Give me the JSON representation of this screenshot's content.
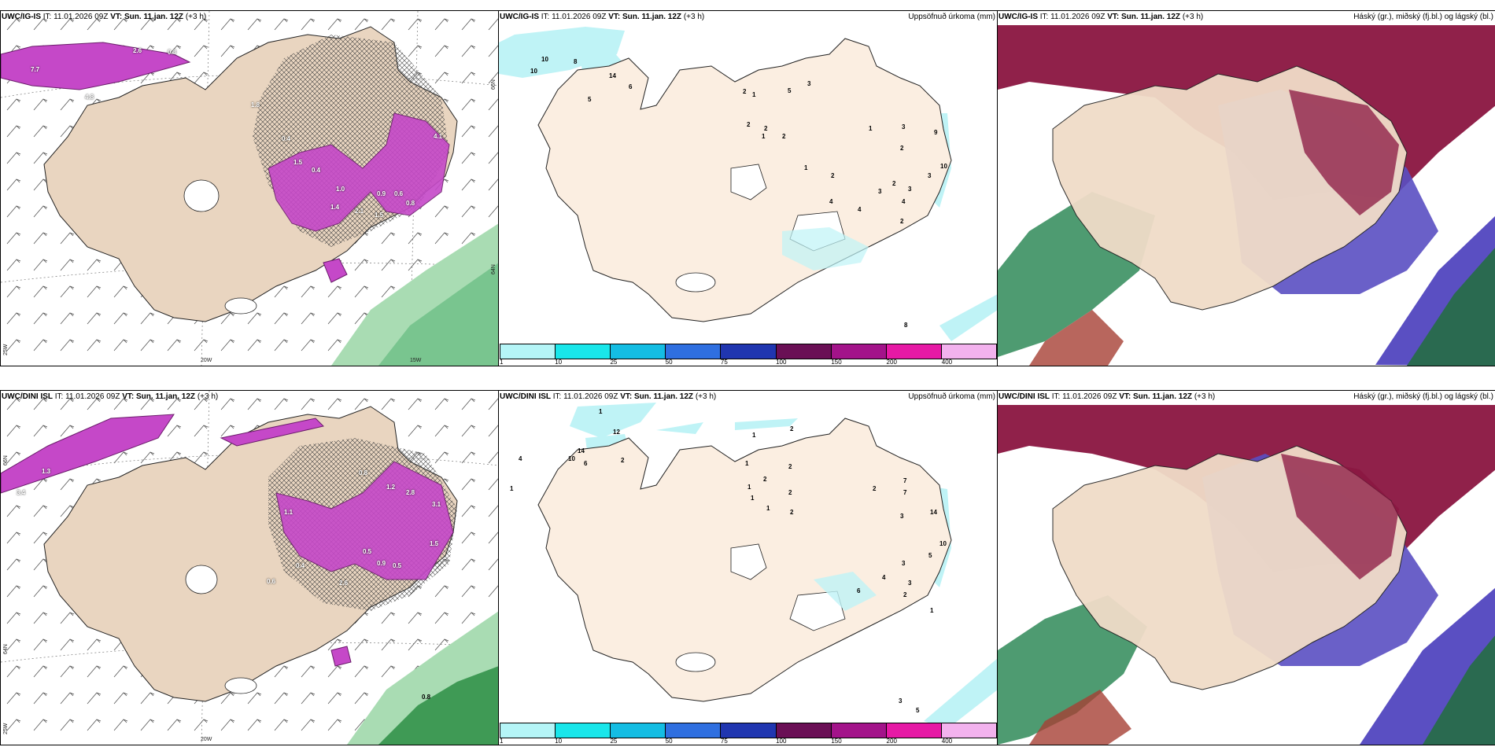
{
  "rows": [
    {
      "model": "UWC/IG-IS",
      "issue": "IT: 11.01.2026 09Z",
      "vt_label": "VT:",
      "vt_value": "Sun. 11.jan. 12Z",
      "lead": "(+3 h)",
      "left": {
        "grid_labels": [
          "20W",
          "15W",
          "25W",
          "66N",
          "64N"
        ],
        "precip_values": [
          "2.6",
          "7.7",
          "4.8",
          "1.8",
          "0.4",
          "1.5",
          "0.4",
          "1.4",
          "1.0",
          "2.1",
          "1.5",
          "4.1",
          "0.9",
          "0.6",
          "0.8",
          "0.3"
        ]
      },
      "middle": {
        "title": "Uppsöfnuð úrkoma (mm)",
        "values": [
          "10",
          "10",
          "8",
          "5",
          "14",
          "6",
          "2",
          "1",
          "5",
          "3",
          "2",
          "2",
          "2",
          "1",
          "1",
          "3",
          "9",
          "2",
          "10",
          "3",
          "4",
          "4",
          "3",
          "2",
          "4",
          "3",
          "2",
          "1",
          "2",
          "8"
        ]
      },
      "right": {
        "title": "Háský (gr.), miðský (fj.bl.) og lágský (bl.)"
      }
    },
    {
      "model": "UWC/DINI ISL",
      "issue": "IT: 11.01.2026 09Z",
      "vt_label": "VT:",
      "vt_value": "Sun. 11.jan. 12Z",
      "lead": "(+3 h)",
      "left": {
        "grid_labels": [
          "20W",
          "25W",
          "66N",
          "64N"
        ],
        "precip_values": [
          "1.3",
          "3.4",
          "1.1",
          "0.4",
          "1.2",
          "2.8",
          "0.8",
          "0.6",
          "3.1",
          "2.6",
          "0.9",
          "1.5",
          "0.5",
          "0.8",
          "0.5"
        ]
      },
      "middle": {
        "title": "Uppsöfnuð úrkoma (mm)",
        "values": [
          "1",
          "4",
          "1",
          "12",
          "10",
          "14",
          "6",
          "2",
          "1",
          "2",
          "1",
          "1",
          "2",
          "2",
          "1",
          "1",
          "2",
          "2",
          "7",
          "7",
          "14",
          "3",
          "10",
          "2",
          "5",
          "3",
          "6",
          "4",
          "2",
          "3",
          "1",
          "5",
          "3"
        ]
      },
      "right": {
        "title": "Háský (gr.), miðský (fj.bl.) og lágský (bl.)"
      }
    }
  ],
  "legend": {
    "labels": [
      "1",
      "10",
      "25",
      "50",
      "75",
      "100",
      "150",
      "200",
      "400"
    ],
    "colors": [
      "#b5f5f7",
      "#19e6ea",
      "#14bde3",
      "#2f6fe0",
      "#2036b0",
      "#6a0f55",
      "#a3138a",
      "#e619a5",
      "#f3b2ee"
    ]
  },
  "colors": {
    "land": "#f7e7d6",
    "precip_cyan": "#b8f2f5",
    "precip_purple": "#cc44cc",
    "green": "#5ec27a",
    "high_cloud": "#2f8a58",
    "mid_cloud": "#8a1540",
    "low_cloud": "#5a4fc2"
  }
}
